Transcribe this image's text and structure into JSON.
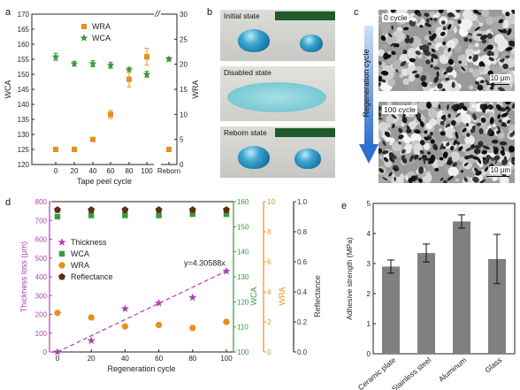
{
  "panel_labels": {
    "a": "a",
    "b": "b",
    "c": "c",
    "d": "d",
    "e": "e"
  },
  "colors": {
    "wca": "#3a9a3a",
    "wra": "#e8901e",
    "thickness": "#b040b0",
    "reflectance": "#5a3018",
    "bar": "#808080",
    "droplet": "#2a8fb8",
    "arrow": "#2f6fd0"
  },
  "chart_data": [
    {
      "id": "a",
      "type": "scatter",
      "xlabel": "Tape peel cycle",
      "ylabel_left": "WCA",
      "ylabel_right": "WRA",
      "ylim_left": [
        120,
        170
      ],
      "ylim_right": [
        0,
        30
      ],
      "xtick_labels": [
        "0",
        "20",
        "40",
        "60",
        "80",
        "100",
        "Reborn"
      ],
      "yticks_left": [
        "120",
        "125",
        "130",
        "135",
        "140",
        "145",
        "150",
        "155",
        "160",
        "165",
        "170"
      ],
      "yticks_right": [
        "0",
        "5",
        "10",
        "15",
        "20",
        "25",
        "30"
      ],
      "axis_break_mark": "//",
      "legend": {
        "wra": "WRA",
        "wca": "WCA"
      },
      "series": [
        {
          "name": "WCA",
          "axis": "left",
          "marker": "star",
          "values": [
            155.8,
            153.5,
            153.5,
            153.0,
            151.5,
            150.0,
            155.0
          ],
          "err": [
            1.2,
            0.8,
            1.0,
            1.0,
            0.8,
            1.0,
            0.6
          ]
        },
        {
          "name": "WRA",
          "axis": "right",
          "marker": "square",
          "values": [
            3.0,
            3.0,
            5.0,
            10.0,
            17.0,
            21.5,
            3.0
          ],
          "err": [
            0.3,
            0.3,
            0.3,
            0.8,
            1.5,
            1.7,
            0.3
          ]
        }
      ]
    },
    {
      "id": "d",
      "type": "scatter",
      "xlabel": "Regeneration cycle",
      "ylabel_thickness": "Thickness loss (μm)",
      "ylabel_wca": "WCA",
      "ylabel_wra": "WRA",
      "ylabel_reflectance": "Reflectance",
      "x": [
        0,
        20,
        40,
        60,
        80,
        100
      ],
      "xticks": [
        "0",
        "20",
        "40",
        "60",
        "80",
        "100"
      ],
      "yticks_thickness": [
        "0",
        "100",
        "200",
        "300",
        "400",
        "500",
        "600",
        "700",
        "800"
      ],
      "yticks_wca": [
        "100",
        "110",
        "120",
        "130",
        "140",
        "150",
        "160"
      ],
      "yticks_wra": [
        "0",
        "2",
        "4",
        "6",
        "8",
        "10"
      ],
      "yticks_reflectance": [
        "0.0",
        "0.2",
        "0.4",
        "0.6",
        "0.8",
        "1.0"
      ],
      "ylim_thickness": [
        0,
        800
      ],
      "ylim_wca": [
        100,
        160
      ],
      "ylim_wra": [
        0,
        10
      ],
      "ylim_reflectance": [
        0,
        1
      ],
      "fit_label": "y=4.30588x",
      "fit_slope": 4.30588,
      "legend": {
        "thickness": "Thickness",
        "wca": "WCA",
        "wra": "WRA",
        "reflectance": "Reflectance"
      },
      "series": [
        {
          "name": "Thickness",
          "marker": "star",
          "values": [
            0,
            60,
            230,
            260,
            290,
            430
          ]
        },
        {
          "name": "WCA",
          "marker": "square",
          "values": [
            154,
            154.5,
            154.5,
            154.5,
            155,
            155
          ]
        },
        {
          "name": "WRA",
          "marker": "hexagon",
          "values": [
            2.6,
            2.3,
            1.7,
            1.8,
            1.6,
            2.0
          ]
        },
        {
          "name": "Reflectance",
          "marker": "pentagon",
          "values": [
            0.945,
            0.945,
            0.945,
            0.945,
            0.945,
            0.945
          ]
        }
      ]
    },
    {
      "id": "e",
      "type": "bar",
      "ylabel": "Adhesive strength (MPa)",
      "ylim": [
        0,
        5
      ],
      "yticks": [
        "0",
        "1",
        "2",
        "3",
        "4",
        "5"
      ],
      "categories": [
        "Ceramic plate",
        "Stainless steel",
        "Aluminum",
        "Glass"
      ],
      "values": [
        2.9,
        3.35,
        4.4,
        3.15
      ],
      "err": [
        0.22,
        0.3,
        0.22,
        0.82
      ]
    }
  ],
  "panel_b": {
    "initial": "Initial state",
    "disabled": "Disabled state",
    "reborn": "Reborn state"
  },
  "panel_c": {
    "top_title": "0 cycle",
    "bottom_title": "100 cycle",
    "scale": "10 μm",
    "arrow_label": "Regeneration cycle"
  }
}
